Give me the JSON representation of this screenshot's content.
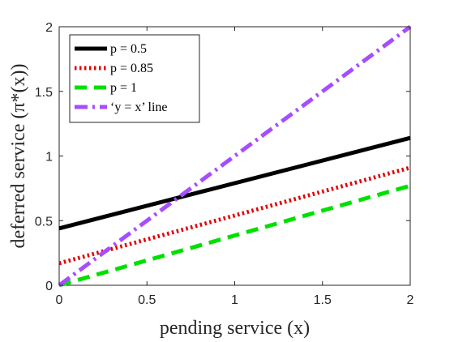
{
  "chart_data": {
    "type": "line",
    "xlabel": "pending service (x)",
    "ylabel": "deferred service (π*(x))",
    "xlim": [
      0,
      2
    ],
    "ylim": [
      0,
      2
    ],
    "xticks": [
      "0",
      "0.5",
      "1",
      "1.5",
      "2"
    ],
    "yticks": [
      "0",
      "0.5",
      "1",
      "1.5",
      "2"
    ],
    "legend_position": "top-left",
    "series": [
      {
        "name": "p = 0.5",
        "color": "#000000",
        "style": "solid",
        "x": [
          0,
          2
        ],
        "y": [
          0.44,
          1.14
        ]
      },
      {
        "name": "p = 0.85",
        "color": "#e00000",
        "style": "dotted",
        "x": [
          0,
          2
        ],
        "y": [
          0.17,
          0.91
        ]
      },
      {
        "name": "p = 1",
        "color": "#00e000",
        "style": "dashed",
        "x": [
          0,
          2
        ],
        "y": [
          0.0,
          0.77
        ]
      },
      {
        "name": "‘y = x’ line",
        "color": "#a64dff",
        "style": "dashdot",
        "x": [
          0,
          2
        ],
        "y": [
          0,
          2
        ]
      }
    ]
  }
}
